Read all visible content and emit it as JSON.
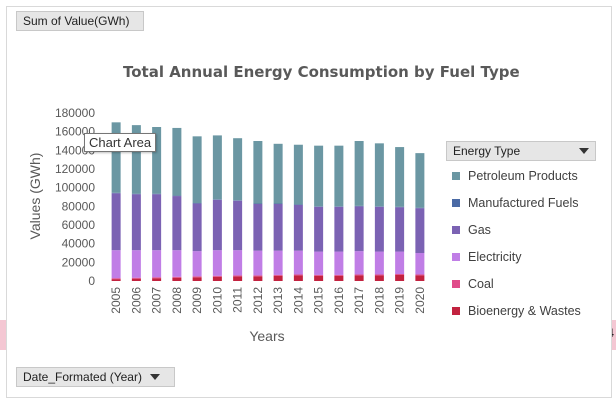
{
  "pivot": {
    "value_field": "Sum of Value(GWh)",
    "legend_field": "Energy Type",
    "axis_field": "Date_Formated  (Year)",
    "tooltip": "Chart Area",
    "edge_fragment": "4"
  },
  "colors": {
    "Petroleum Products": "#6b97a3",
    "Manufactured Fuels": "#4a6aa5",
    "Gas": "#7b62b3",
    "Electricity": "#c07ee6",
    "Coal": "#e04b8a",
    "Bioenergy & Wastes": "#c2223f"
  },
  "chart_data": {
    "type": "bar",
    "stacked": true,
    "title": "Total Annual Energy Consumption by Fuel Type",
    "xlabel": "Years",
    "ylabel": "Values (GWh)",
    "ylim": [
      0,
      180000
    ],
    "yticks": [
      0,
      20000,
      40000,
      60000,
      80000,
      100000,
      120000,
      140000,
      160000,
      180000
    ],
    "legend_position": "right",
    "categories": [
      "2005",
      "2006",
      "2007",
      "2008",
      "2009",
      "2010",
      "2011",
      "2012",
      "2013",
      "2014",
      "2015",
      "2016",
      "2017",
      "2018",
      "2019",
      "2020"
    ],
    "series": [
      {
        "name": "Bioenergy & Wastes",
        "values": [
          2000,
          2500,
          3000,
          3500,
          4000,
          4500,
          5000,
          5000,
          5500,
          6000,
          5500,
          5500,
          6000,
          6000,
          6500,
          6000
        ]
      },
      {
        "name": "Coal",
        "values": [
          1000,
          1000,
          1000,
          1000,
          1000,
          1000,
          1000,
          1000,
          1000,
          1000,
          1000,
          1000,
          1000,
          1000,
          1000,
          1000
        ]
      },
      {
        "name": "Electricity",
        "values": [
          30000,
          29500,
          29000,
          28500,
          27000,
          27500,
          27000,
          26500,
          26000,
          25500,
          25000,
          25000,
          25000,
          24500,
          24000,
          23000
        ]
      },
      {
        "name": "Gas",
        "values": [
          61000,
          60000,
          60000,
          58000,
          51000,
          54000,
          53000,
          50000,
          50000,
          49000,
          48000,
          48000,
          48000,
          48000,
          47500,
          48000
        ]
      },
      {
        "name": "Manufactured Fuels",
        "values": [
          500,
          500,
          500,
          500,
          500,
          500,
          500,
          500,
          500,
          500,
          500,
          500,
          500,
          500,
          500,
          500
        ]
      },
      {
        "name": "Petroleum Products",
        "values": [
          75500,
          73500,
          71500,
          72500,
          71500,
          68500,
          66500,
          67000,
          64000,
          64000,
          65000,
          65000,
          69500,
          67500,
          64000,
          58500
        ]
      }
    ]
  }
}
